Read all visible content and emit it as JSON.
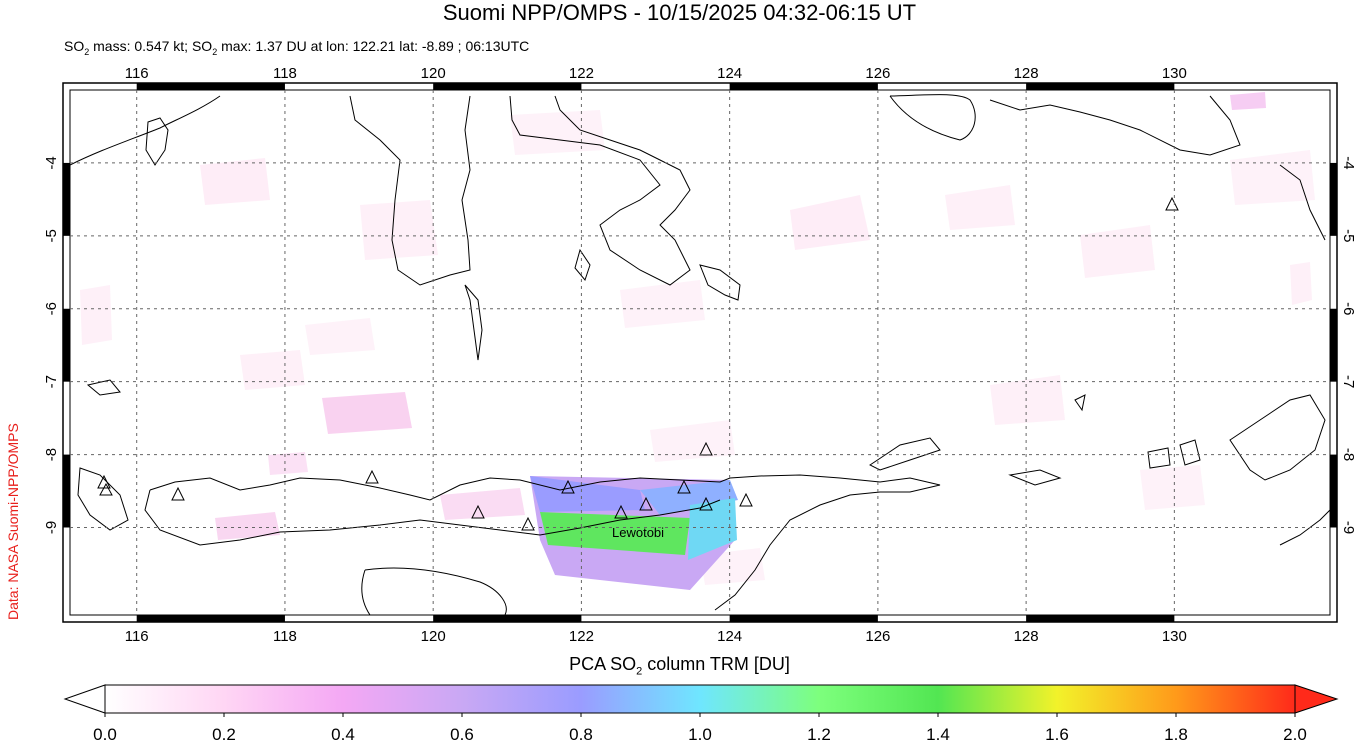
{
  "title": "Suomi NPP/OMPS - 10/15/2025 04:32-06:15 UT",
  "subtitle": {
    "prefix": "SO",
    "sub1": "2",
    "mid1": " mass: 0.547 kt; SO",
    "sub2": "2",
    "rest": " max: 1.37 DU at lon: 122.21 lat: -8.89 ; 06:13UTC"
  },
  "credit": "Data: NASA Suomi-NPP/OMPS",
  "colorbar_title": {
    "pre": "PCA SO",
    "sub": "2",
    "post": " column TRM [DU]"
  },
  "map": {
    "lon_range": [
      115.1,
      132.1
    ],
    "lat_range": [
      -10.2,
      -3.0
    ],
    "lon_ticks": [
      "116",
      "118",
      "120",
      "122",
      "124",
      "126",
      "128",
      "130"
    ],
    "lat_ticks": [
      "-4",
      "-5",
      "-6",
      "-7",
      "-8",
      "-9"
    ],
    "grid": "dotted",
    "volcano_label": "Lewotobi"
  },
  "colorbar": {
    "ticks": [
      "0.0",
      "0.2",
      "0.4",
      "0.6",
      "0.8",
      "1.0",
      "1.2",
      "1.4",
      "1.6",
      "1.8",
      "2.0"
    ],
    "colors": [
      "#ffffff",
      "#ffd6f4",
      "#f4a8f4",
      "#c9a8f4",
      "#9a9cff",
      "#6fe6ff",
      "#7dff7d",
      "#52e652",
      "#f2f22a",
      "#ff9a1a",
      "#ff2a1a"
    ]
  },
  "chart_data": {
    "type": "heatmap",
    "title": "Suomi NPP/OMPS - 10/15/2025 04:32-06:15 UT",
    "xlabel": "",
    "ylabel": "",
    "xlim": [
      115.1,
      132.1
    ],
    "ylim": [
      -10.2,
      -3.0
    ],
    "value_label": "PCA SO2 column TRM [DU]",
    "value_range": [
      0.0,
      2.0
    ],
    "max_value": 1.37,
    "max_location": {
      "lon": 122.21,
      "lat": -8.89
    }
  }
}
